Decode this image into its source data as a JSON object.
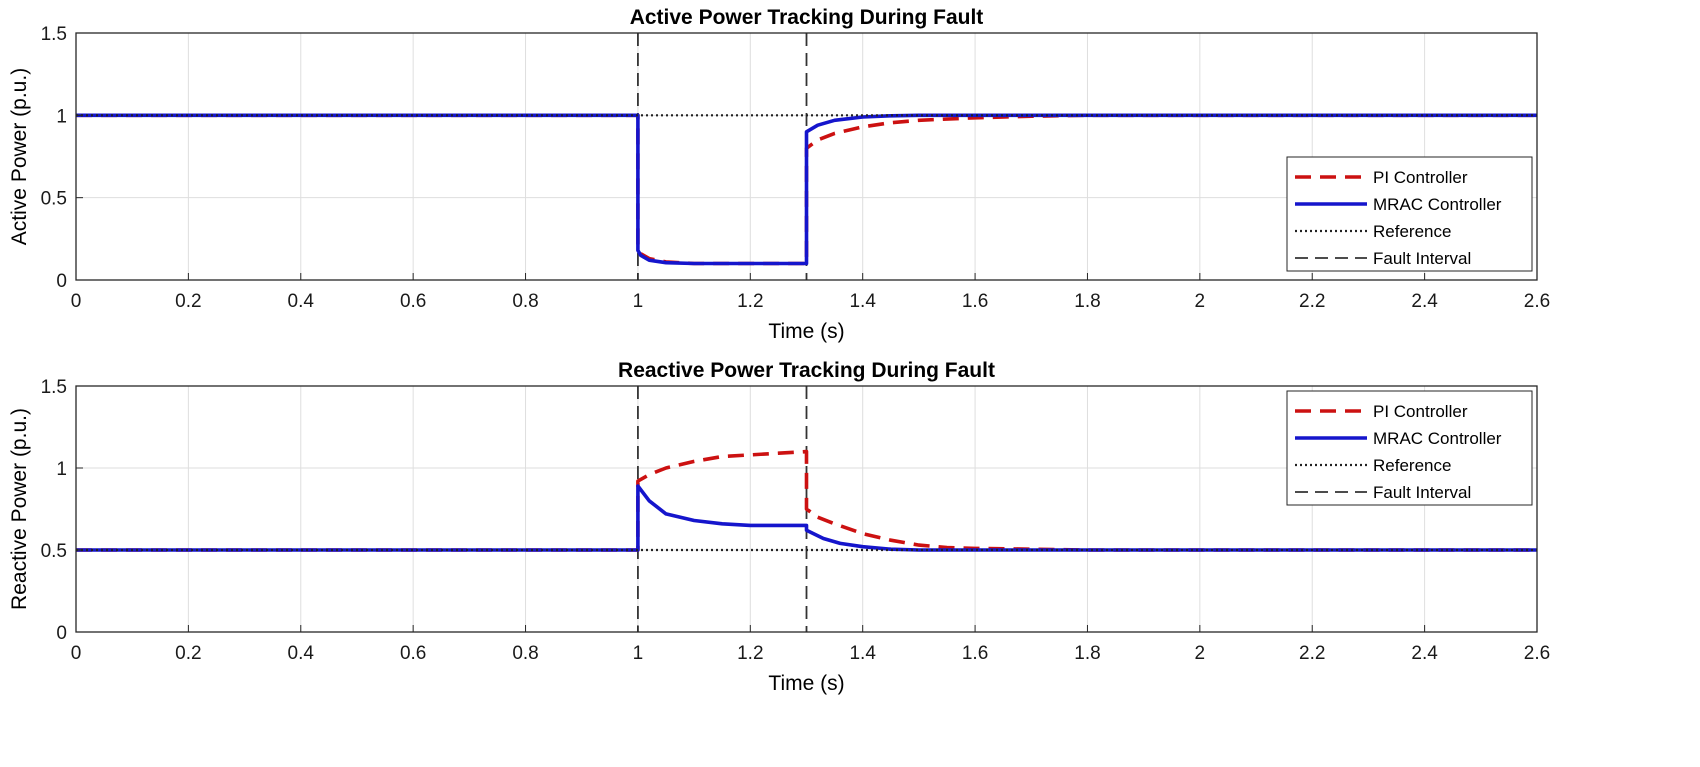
{
  "figure": {
    "type": "line",
    "panel_count": 2
  },
  "chart_data": [
    {
      "type": "line",
      "title": "Active Power Tracking During Fault",
      "xlabel": "Time (s)",
      "ylabel": "Active Power (p.u.)",
      "xlim": [
        0,
        2.6
      ],
      "ylim": [
        0,
        1.5
      ],
      "xticks": [
        "0",
        "0.2",
        "0.4",
        "0.6",
        "0.8",
        "1",
        "1.2",
        "1.4",
        "1.6",
        "1.8",
        "2",
        "2.2",
        "2.4",
        "2.6"
      ],
      "yticks": [
        "0",
        "0.5",
        "1",
        "1.5"
      ],
      "grid": true,
      "legend_position": "bottom-right",
      "fault_interval": [
        1.0,
        1.3
      ],
      "series": [
        {
          "name": "PI Controller",
          "color": "#cc1111",
          "style": "dashed",
          "x": [
            0,
            1.0,
            1.0,
            1.005,
            1.02,
            1.05,
            1.1,
            1.2,
            1.3,
            1.3,
            1.32,
            1.35,
            1.4,
            1.45,
            1.5,
            1.6,
            1.7,
            1.8,
            2.6
          ],
          "y": [
            1.0,
            1.0,
            0.2,
            0.16,
            0.13,
            0.11,
            0.1,
            0.1,
            0.1,
            0.8,
            0.85,
            0.89,
            0.93,
            0.955,
            0.97,
            0.985,
            0.995,
            1.0,
            1.0
          ]
        },
        {
          "name": "MRAC Controller",
          "color": "#1515cc",
          "style": "solid",
          "x": [
            0,
            1.0,
            1.0,
            1.005,
            1.02,
            1.05,
            1.1,
            1.2,
            1.3,
            1.3,
            1.32,
            1.35,
            1.4,
            1.45,
            1.5,
            2.6
          ],
          "y": [
            1.0,
            1.0,
            0.18,
            0.15,
            0.12,
            0.105,
            0.1,
            0.1,
            0.1,
            0.9,
            0.94,
            0.97,
            0.99,
            0.997,
            1.0,
            1.0
          ]
        },
        {
          "name": "Reference",
          "color": "#222222",
          "style": "dotted",
          "x": [
            0,
            2.6
          ],
          "y": [
            1.0,
            1.0
          ]
        },
        {
          "name": "Fault Interval",
          "color": "#333333",
          "style": "longdash",
          "vlines": [
            1.0,
            1.3
          ]
        }
      ]
    },
    {
      "type": "line",
      "title": "Reactive Power Tracking During Fault",
      "xlabel": "Time (s)",
      "ylabel": "Reactive Power (p.u.)",
      "xlim": [
        0,
        2.6
      ],
      "ylim": [
        0,
        1.5
      ],
      "xticks": [
        "0",
        "0.2",
        "0.4",
        "0.6",
        "0.8",
        "1",
        "1.2",
        "1.4",
        "1.6",
        "1.8",
        "2",
        "2.2",
        "2.4",
        "2.6"
      ],
      "yticks": [
        "0",
        "0.5",
        "1",
        "1.5"
      ],
      "grid": true,
      "legend_position": "top-right",
      "fault_interval": [
        1.0,
        1.3
      ],
      "series": [
        {
          "name": "PI Controller",
          "color": "#cc1111",
          "style": "dashed",
          "x": [
            0,
            1.0,
            1.0,
            1.02,
            1.05,
            1.1,
            1.15,
            1.2,
            1.25,
            1.3,
            1.3,
            1.32,
            1.35,
            1.4,
            1.45,
            1.5,
            1.55,
            1.6,
            1.7,
            1.8,
            2.6
          ],
          "y": [
            0.5,
            0.5,
            0.92,
            0.96,
            1.0,
            1.04,
            1.07,
            1.08,
            1.09,
            1.1,
            0.75,
            0.7,
            0.66,
            0.6,
            0.56,
            0.53,
            0.515,
            0.51,
            0.505,
            0.5,
            0.5
          ]
        },
        {
          "name": "MRAC Controller",
          "color": "#1515cc",
          "style": "solid",
          "x": [
            0,
            1.0,
            1.0,
            1.02,
            1.05,
            1.1,
            1.15,
            1.2,
            1.3,
            1.3,
            1.33,
            1.36,
            1.4,
            1.45,
            1.5,
            2.6
          ],
          "y": [
            0.5,
            0.5,
            0.89,
            0.8,
            0.72,
            0.68,
            0.66,
            0.65,
            0.65,
            0.62,
            0.57,
            0.54,
            0.52,
            0.505,
            0.5,
            0.5
          ]
        },
        {
          "name": "Reference",
          "color": "#222222",
          "style": "dotted",
          "x": [
            0,
            2.6
          ],
          "y": [
            0.5,
            0.5
          ]
        },
        {
          "name": "Fault Interval",
          "color": "#333333",
          "style": "longdash",
          "vlines": [
            1.0,
            1.3
          ]
        }
      ]
    }
  ]
}
